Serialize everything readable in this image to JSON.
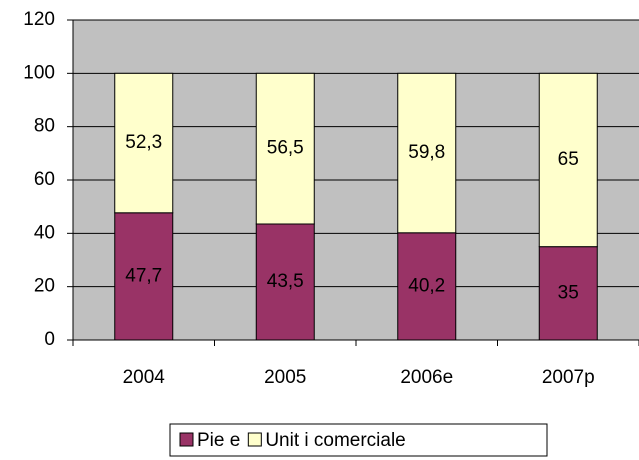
{
  "chart_data": {
    "type": "stacked_bar",
    "categories": [
      "2004",
      "2005",
      "2006e",
      "2007p"
    ],
    "series": [
      {
        "name": "Pie e",
        "color": "#993366",
        "values": [
          47.7,
          43.5,
          40.2,
          35
        ],
        "value_labels": [
          "47,7",
          "43,5",
          "40,2",
          "35"
        ]
      },
      {
        "name": "Unit i comerciale",
        "color": "#ffffcc",
        "values": [
          52.3,
          56.5,
          59.8,
          65
        ],
        "value_labels": [
          "52,3",
          "56,5",
          "59,8",
          "65"
        ]
      }
    ],
    "ylim": [
      0,
      120
    ],
    "yticks": [
      0,
      20,
      40,
      60,
      80,
      100,
      120
    ],
    "grid": true,
    "plot_background": "#c0c0c0",
    "legend": "bottom"
  }
}
